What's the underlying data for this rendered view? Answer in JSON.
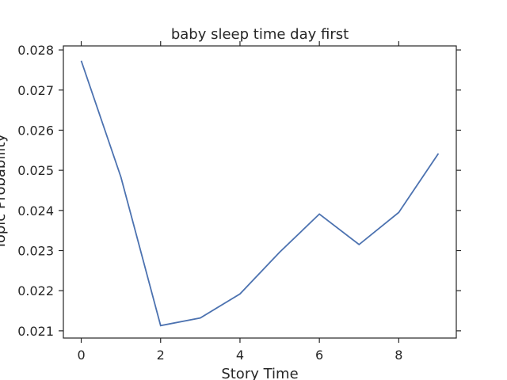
{
  "chart_data": {
    "type": "line",
    "title": "baby sleep time day first",
    "xlabel": "Story Time",
    "ylabel": "Topic Probability",
    "xlim": [
      -0.45,
      9.45
    ],
    "ylim": [
      0.02082,
      0.0281
    ],
    "xticks": [
      0,
      2,
      4,
      6,
      8
    ],
    "xtick_labels": [
      "0",
      "2",
      "4",
      "6",
      "8"
    ],
    "yticks": [
      0.021,
      0.022,
      0.023,
      0.024,
      0.025,
      0.026,
      0.027,
      0.028
    ],
    "ytick_labels": [
      "0.021",
      "0.022",
      "0.023",
      "0.024",
      "0.025",
      "0.026",
      "0.027",
      "0.028"
    ],
    "grid": false,
    "line_color": "#4c72b0",
    "series": [
      {
        "x": [
          0,
          1,
          2,
          3,
          4,
          5,
          6,
          7,
          8,
          9
        ],
        "values": [
          0.02773,
          0.02483,
          0.02113,
          0.02132,
          0.02192,
          0.02296,
          0.02391,
          0.02315,
          0.02395,
          0.02542
        ]
      }
    ]
  }
}
